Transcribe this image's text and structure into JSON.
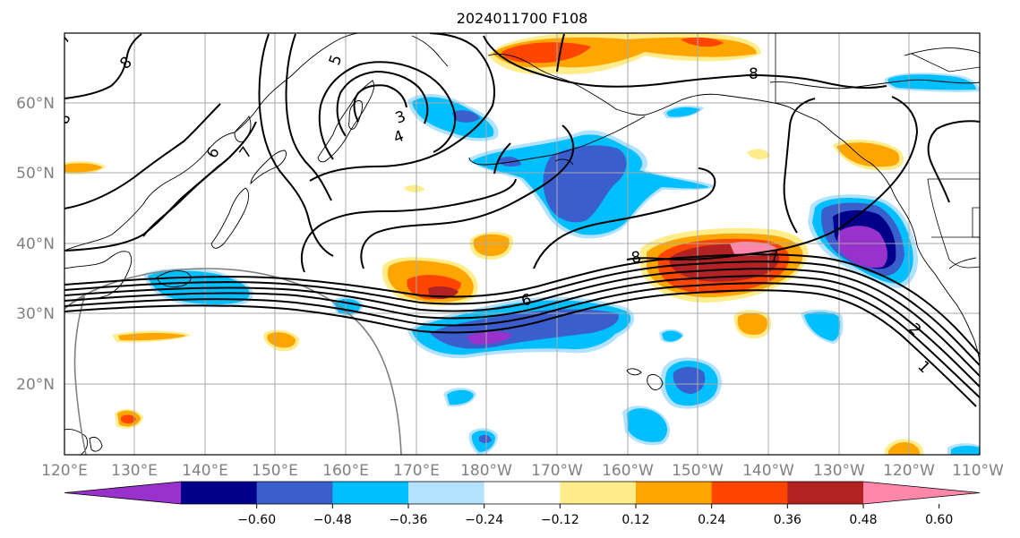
{
  "title": "2024011700 F108",
  "latitude_labels": [
    "20°N",
    "30°N",
    "40°N",
    "50°N",
    "60°N"
  ],
  "longitude_labels": [
    "120°E",
    "130°E",
    "140°E",
    "150°E",
    "160°E",
    "170°E",
    "180°W",
    "170°W",
    "160°W",
    "150°W",
    "140°W",
    "130°W",
    "120°W",
    "110°W"
  ],
  "colorbar": {
    "ticks": [
      "−0.60",
      "−0.48",
      "−0.36",
      "−0.24",
      "−0.12",
      "0.12",
      "0.24",
      "0.36",
      "0.48",
      "0.60"
    ],
    "colors": [
      "#9932cc",
      "#00008b",
      "#3a5fcd",
      "#00bfff",
      "#b2e2ff",
      "#ffffff",
      "#ffec8b",
      "#ffa500",
      "#ff4500",
      "#b22222",
      "#ff88aa"
    ]
  },
  "contour_labels": [
    "8",
    "7",
    "6",
    "5",
    "4",
    "3",
    "8",
    "8",
    "7",
    "6",
    "2",
    "1",
    "7",
    "8"
  ],
  "colors": {
    "grid": "#a9a9a9",
    "axis_text": "#808080",
    "contour": "#000000"
  }
}
